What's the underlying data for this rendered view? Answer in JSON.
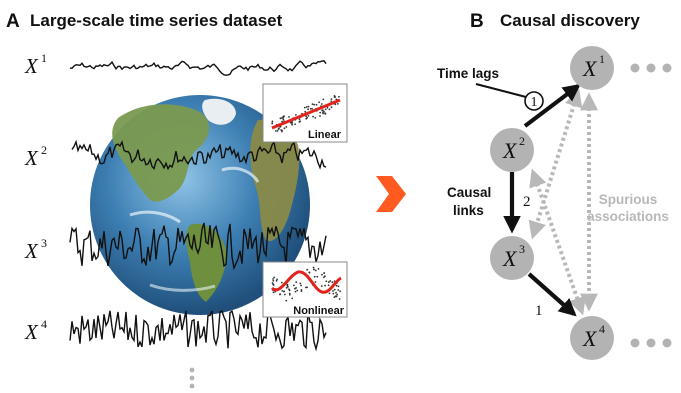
{
  "panel_a": {
    "letter": "A",
    "title": "Large-scale time series dataset",
    "series": [
      {
        "base": "X",
        "sup": "1"
      },
      {
        "base": "X",
        "sup": "2"
      },
      {
        "base": "X",
        "sup": "3"
      },
      {
        "base": "X",
        "sup": "4"
      }
    ],
    "insets": [
      {
        "label": "Linear"
      },
      {
        "label": "Nonlinear"
      }
    ]
  },
  "panel_b": {
    "letter": "B",
    "title": "Causal discovery",
    "nodes": [
      {
        "base": "X",
        "sup": "1"
      },
      {
        "base": "X",
        "sup": "2"
      },
      {
        "base": "X",
        "sup": "3"
      },
      {
        "base": "X",
        "sup": "4"
      }
    ],
    "time_lags_label": "Time lags",
    "causal_links_label": [
      "Causal",
      "links"
    ],
    "spurious_label": [
      "Spurious",
      "associations"
    ],
    "lag_labels": [
      "1",
      "2",
      "1"
    ]
  },
  "colors": {
    "node": "#b3b3b3",
    "spurious": "#b8b8b8",
    "arrow_accent": "#ff5a1f",
    "inset_fit": "#e0241b",
    "ocean": "#3d7fb3",
    "land": "#6f8f45"
  }
}
